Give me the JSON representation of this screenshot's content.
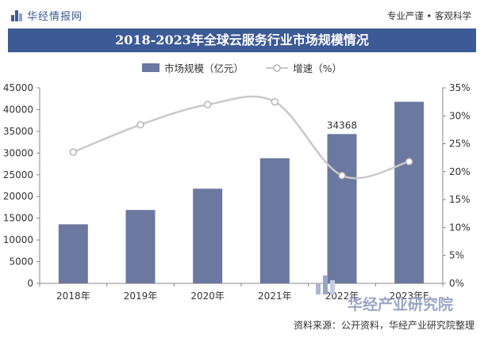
{
  "header": {
    "brand_name": "华经情报网",
    "slogan": "专业严谨 • 客观科学"
  },
  "chart_data": {
    "type": "bar",
    "title": "2018-2023年全球云服务行业市场规模情况",
    "categories": [
      "2018年",
      "2019年",
      "2020年",
      "2021年",
      "2022年",
      "2023年E"
    ],
    "series": [
      {
        "name": "市场规模（亿元）",
        "type": "bar",
        "axis": "left",
        "values": [
          13600,
          16900,
          21800,
          28800,
          34368,
          41800
        ],
        "color": "#6b789f"
      },
      {
        "name": "增速（%）",
        "type": "line",
        "axis": "right",
        "values": [
          23.5,
          28.4,
          32.0,
          32.5,
          19.3,
          21.8
        ],
        "color": "#c9c9c9"
      }
    ],
    "data_labels": [
      {
        "category_index": 4,
        "series_index": 0,
        "text": "34368"
      }
    ],
    "left_axis": {
      "min": 0,
      "max": 45000,
      "step": 5000,
      "ticks": [
        "0",
        "5000",
        "10000",
        "15000",
        "20000",
        "25000",
        "30000",
        "35000",
        "40000",
        "45000"
      ]
    },
    "right_axis": {
      "min": 0,
      "max": 35,
      "step": 5,
      "ticks": [
        "0%",
        "5%",
        "10%",
        "15%",
        "20%",
        "25%",
        "30%",
        "35%"
      ]
    },
    "legend": "top-center",
    "grid": false
  },
  "source": "资料来源：公开资料，华经产业研究院整理",
  "watermark": {
    "text": "华经产业研究院"
  }
}
